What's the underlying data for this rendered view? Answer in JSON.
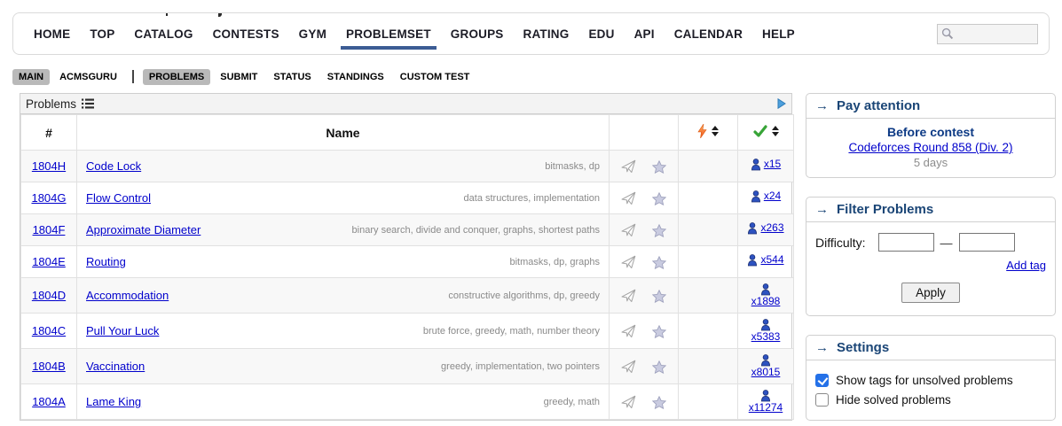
{
  "nav": {
    "search_placeholder": "",
    "items": [
      {
        "label": "HOME"
      },
      {
        "label": "TOP"
      },
      {
        "label": "CATALOG"
      },
      {
        "label": "CONTESTS"
      },
      {
        "label": "GYM"
      },
      {
        "label": "PROBLEMSET",
        "active": true
      },
      {
        "label": "GROUPS"
      },
      {
        "label": "RATING"
      },
      {
        "label": "EDU"
      },
      {
        "label": "API"
      },
      {
        "label": "CALENDAR"
      },
      {
        "label": "HELP"
      }
    ]
  },
  "subnav": {
    "items": [
      {
        "label": "MAIN",
        "style": "pill"
      },
      {
        "label": "ACMSGURU",
        "style": "plain"
      },
      {
        "style": "sep"
      },
      {
        "label": "PROBLEMS",
        "style": "pill"
      },
      {
        "label": "SUBMIT",
        "style": "plain"
      },
      {
        "label": "STATUS",
        "style": "plain"
      },
      {
        "label": "STANDINGS",
        "style": "plain"
      },
      {
        "label": "CUSTOM TEST",
        "style": "plain"
      }
    ]
  },
  "table": {
    "caption": "Problems",
    "headers": {
      "number": "#",
      "name": "Name"
    },
    "rows": [
      {
        "id": "1804H",
        "name": "Code Lock",
        "tags": "bitmasks, dp",
        "solved": "x15",
        "wrap": false
      },
      {
        "id": "1804G",
        "name": "Flow Control",
        "tags": "data structures, implementation",
        "solved": "x24",
        "wrap": false
      },
      {
        "id": "1804F",
        "name": "Approximate Diameter",
        "tags": "binary search, divide and conquer, graphs, shortest paths",
        "solved": "x263",
        "wrap": false
      },
      {
        "id": "1804E",
        "name": "Routing",
        "tags": "bitmasks, dp, graphs",
        "solved": "x544",
        "wrap": false
      },
      {
        "id": "1804D",
        "name": "Accommodation",
        "tags": "constructive algorithms, dp, greedy",
        "solved": "x1898",
        "wrap": true
      },
      {
        "id": "1804C",
        "name": "Pull Your Luck",
        "tags": "brute force, greedy, math, number theory",
        "solved": "x5383",
        "wrap": true
      },
      {
        "id": "1804B",
        "name": "Vaccination",
        "tags": "greedy, implementation, two pointers",
        "solved": "x8015",
        "wrap": true
      },
      {
        "id": "1804A",
        "name": "Lame King",
        "tags": "greedy, math",
        "solved": "x11274",
        "wrap": true
      }
    ]
  },
  "sidebar": {
    "caption_arrow": "→",
    "pay_attention": {
      "title": "Pay attention",
      "before_label": "Before contest",
      "contest": "Codeforces Round 858 (Div. 2)",
      "countdown": "5 days"
    },
    "filter": {
      "title": "Filter Problems",
      "difficulty_label": "Difficulty:",
      "range_dash": "—",
      "add_tag_label": "Add tag",
      "apply_label": "Apply"
    },
    "settings": {
      "title": "Settings",
      "options": [
        {
          "label": "Show tags for unsolved problems",
          "checked": true
        },
        {
          "label": "Hide solved problems",
          "checked": false
        }
      ]
    }
  },
  "colors": {
    "link_blue": "#0000cc",
    "nav_underline": "#3c5c94",
    "sidebar_title": "#1a4576",
    "before_contest_navy": "#0d3a85",
    "checkbox_blue": "#2471e8",
    "tag_gray": "#8a8a8a",
    "alt_row_bg": "#f8f8f8",
    "bolt_orange": "#ff7a1a",
    "check_green": "#37a437",
    "star_fill": "#c9cbe0",
    "solver_blue": "#2d52c0",
    "caption_play_blue": "#4da0dd"
  }
}
